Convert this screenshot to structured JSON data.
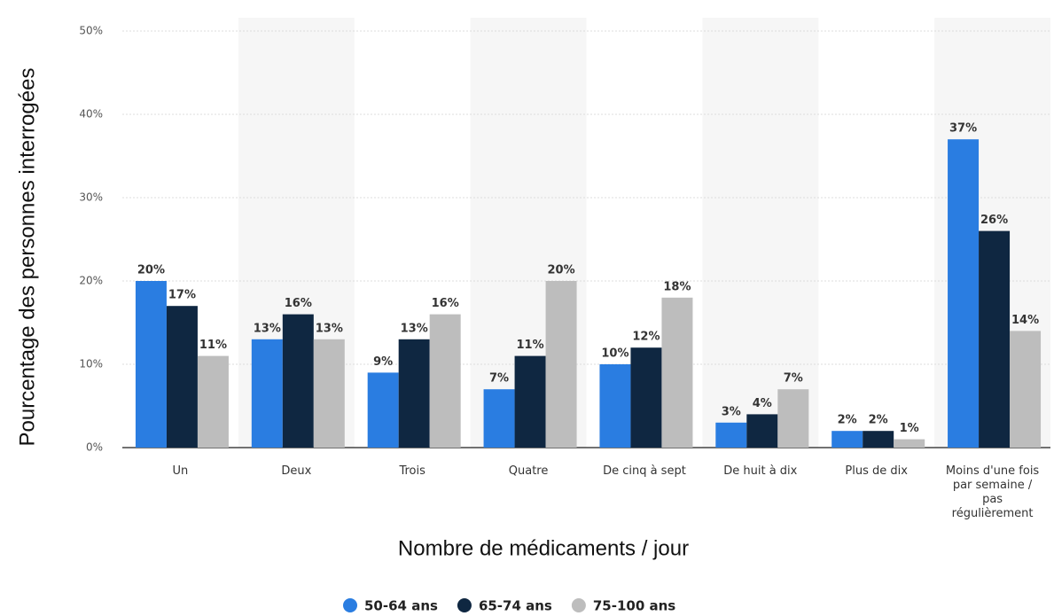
{
  "chart_data": {
    "type": "bar",
    "y_label": "Pourcentage des personnes interrogées",
    "x_label": "Nombre de médicaments / jour",
    "categories": [
      "Un",
      "Deux",
      "Trois",
      "Quatre",
      "De cinq à sept",
      "De huit à dix",
      "Plus de dix",
      "Moins d'une fois par semaine / pas régulièrement"
    ],
    "series": [
      {
        "name": "50-64 ans",
        "color": "#2a7de1",
        "values": [
          20,
          13,
          9,
          7,
          10,
          3,
          2,
          37
        ],
        "value_labels": [
          "20%",
          "13%",
          "9%",
          "7%",
          "10%",
          "3%",
          "2%",
          "37%"
        ]
      },
      {
        "name": "65-74 ans",
        "color": "#0f2741",
        "values": [
          17,
          16,
          13,
          11,
          12,
          4,
          2,
          26
        ],
        "value_labels": [
          "17%",
          "16%",
          "13%",
          "11%",
          "12%",
          "4%",
          "2%",
          "26%"
        ]
      },
      {
        "name": "75-100 ans",
        "color": "#bdbdbd",
        "values": [
          11,
          13,
          16,
          20,
          18,
          7,
          1,
          14
        ],
        "value_labels": [
          "11%",
          "13%",
          "16%",
          "20%",
          "18%",
          "7%",
          "1%",
          "14%"
        ]
      }
    ],
    "ylim": [
      0,
      50
    ],
    "yticks": [
      {
        "value": 0,
        "label": "0%"
      },
      {
        "value": 10,
        "label": "10%"
      },
      {
        "value": 20,
        "label": "20%"
      },
      {
        "value": 30,
        "label": "30%"
      },
      {
        "value": 40,
        "label": "40%"
      },
      {
        "value": 50,
        "label": "50%"
      }
    ],
    "grid": true,
    "legend": "bottom"
  }
}
